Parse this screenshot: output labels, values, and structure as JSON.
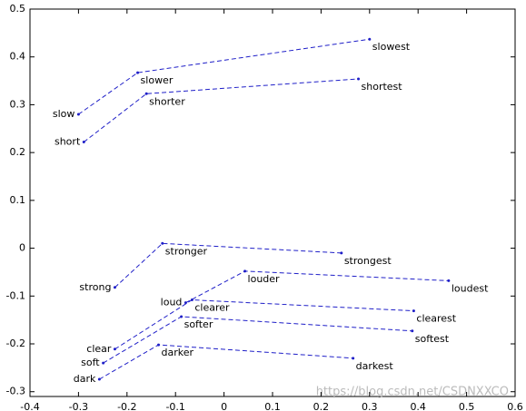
{
  "chart_data": {
    "type": "line",
    "xlim": [
      -0.4,
      0.6
    ],
    "ylim": [
      -0.31,
      0.5
    ],
    "xticks": [
      -0.4,
      -0.3,
      -0.2,
      -0.1,
      0,
      0.1,
      0.2,
      0.3,
      0.4,
      0.5,
      0.6
    ],
    "yticks": [
      -0.3,
      -0.2,
      -0.1,
      0,
      0.1,
      0.2,
      0.3,
      0.4,
      0.5
    ],
    "color": "#1f1fc8",
    "watermark": "https://blog.csdn.net/CSDNXXCO",
    "series": [
      {
        "labels": [
          "slow",
          "slower",
          "slowest"
        ],
        "x": [
          -0.3,
          -0.178,
          0.3
        ],
        "values": [
          0.28,
          0.367,
          0.437
        ]
      },
      {
        "labels": [
          "short",
          "shorter",
          "shortest"
        ],
        "x": [
          -0.289,
          -0.16,
          0.277
        ],
        "values": [
          0.222,
          0.323,
          0.354
        ]
      },
      {
        "labels": [
          "strong",
          "stronger",
          "strongest"
        ],
        "x": [
          -0.225,
          -0.127,
          0.242
        ],
        "values": [
          -0.082,
          0.01,
          -0.01
        ]
      },
      {
        "labels": [
          "loud",
          "louder",
          "loudest"
        ],
        "x": [
          -0.079,
          0.043,
          0.463
        ],
        "values": [
          -0.114,
          -0.048,
          -0.068
        ]
      },
      {
        "labels": [
          "clear",
          "clearer",
          "clearest"
        ],
        "x": [
          -0.225,
          -0.066,
          0.391
        ],
        "values": [
          -0.211,
          -0.108,
          -0.131
        ]
      },
      {
        "labels": [
          "soft",
          "softer",
          "softest"
        ],
        "x": [
          -0.249,
          -0.088,
          0.388
        ],
        "values": [
          -0.24,
          -0.143,
          -0.173
        ]
      },
      {
        "labels": [
          "dark",
          "darker",
          "darkest"
        ],
        "x": [
          -0.257,
          -0.135,
          0.266
        ],
        "values": [
          -0.274,
          -0.202,
          -0.23
        ]
      }
    ]
  }
}
